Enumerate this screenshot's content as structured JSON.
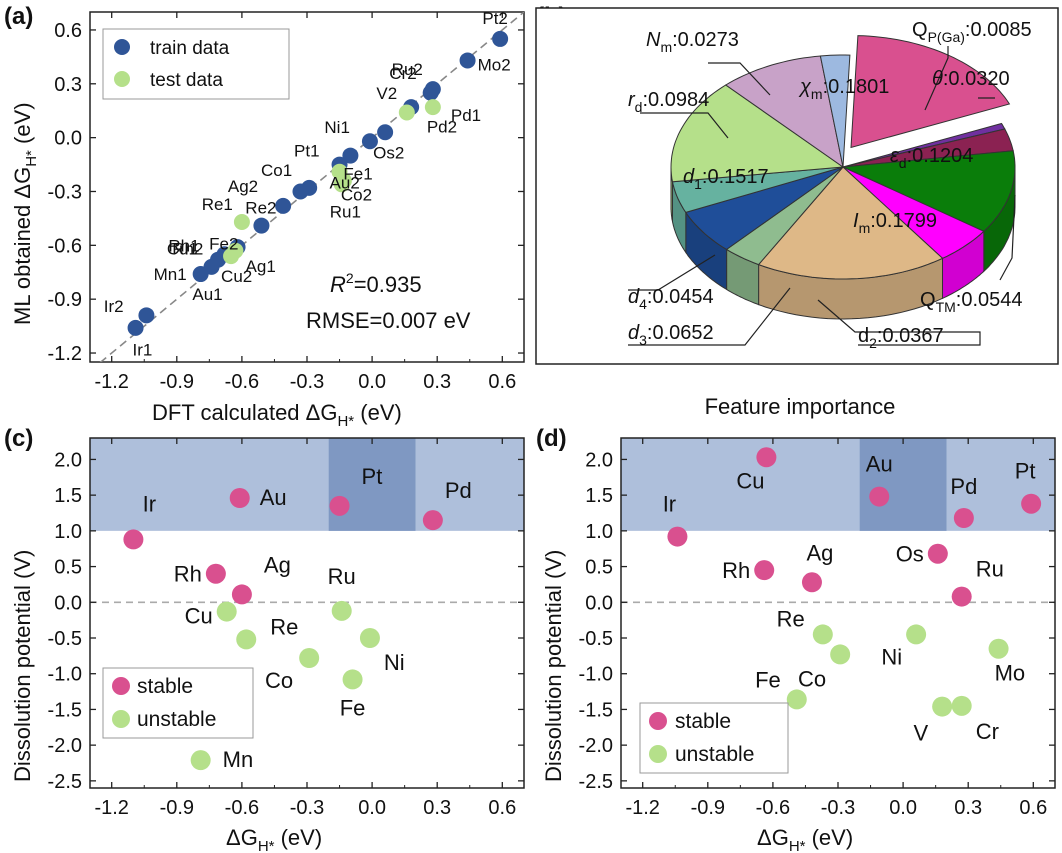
{
  "chart_data": [
    {
      "panel": "(a)",
      "type": "scatter",
      "title": "",
      "xlabel": "DFT calculated ΔG",
      "xlabel_sub": "H*",
      "xlabel_unit": " (eV)",
      "ylabel": "ML obtained ΔG",
      "ylabel_sub": "H*",
      "ylabel_unit": " (eV)",
      "xlim": [
        -1.3,
        0.7
      ],
      "ylim": [
        -1.25,
        0.7
      ],
      "xticks": [
        -1.2,
        -0.9,
        -0.6,
        -0.3,
        0.0,
        0.3,
        0.6
      ],
      "yticks": [
        -1.2,
        -0.9,
        -0.6,
        -0.3,
        0.0,
        0.3,
        0.6
      ],
      "tick_labels": [
        "-1.2",
        "-0.9",
        "-0.6",
        "-0.3",
        "0.0",
        "0.3",
        "0.6"
      ],
      "diagonal": true,
      "r2_label": "R",
      "r2_value": "=0.935",
      "rmse_text": "RMSE=0.007 eV",
      "legend": [
        {
          "name": "train data",
          "color": "#2f5597"
        },
        {
          "name": "test data",
          "color": "#b5e08a"
        }
      ],
      "series": [
        {
          "name": "train data",
          "color": "#2f5597",
          "points": [
            {
              "label": "Pt2",
              "x": 0.59,
              "y": 0.55
            },
            {
              "label": "Mo2",
              "x": 0.44,
              "y": 0.43
            },
            {
              "label": "Ru2",
              "x": 0.28,
              "y": 0.27
            },
            {
              "label": "Cr2",
              "x": 0.27,
              "y": 0.25
            },
            {
              "label": "V2",
              "x": 0.18,
              "y": 0.17
            },
            {
              "label": "Os2",
              "x": 0.06,
              "y": 0.03
            },
            {
              "label": "Ni1",
              "x": -0.01,
              "y": -0.02
            },
            {
              "label": "Fe1",
              "x": -0.1,
              "y": -0.1
            },
            {
              "label": "Pt1",
              "x": -0.15,
              "y": -0.15
            },
            {
              "label": "Co1",
              "x": -0.29,
              "y": -0.28
            },
            {
              "label": "Re2",
              "x": -0.33,
              "y": -0.3
            },
            {
              "label": "Ag2",
              "x": -0.41,
              "y": -0.38
            },
            {
              "label": "Fe2",
              "x": -0.51,
              "y": -0.49
            },
            {
              "label": "Ag1",
              "x": -0.62,
              "y": -0.61
            },
            {
              "label": "Rh1",
              "x": -0.68,
              "y": -0.65
            },
            {
              "label": "Cu1",
              "x": -0.71,
              "y": -0.68
            },
            {
              "label": "Au1",
              "x": -0.74,
              "y": -0.72
            },
            {
              "label": "Mn1",
              "x": -0.79,
              "y": -0.76
            },
            {
              "label": "Ir1",
              "x": -1.04,
              "y": -0.99
            },
            {
              "label": "Ir2",
              "x": -1.09,
              "y": -1.06
            }
          ]
        },
        {
          "name": "test data",
          "color": "#b5e08a",
          "points": [
            {
              "label": "Pd1",
              "x": 0.28,
              "y": 0.17
            },
            {
              "label": "Pd2",
              "x": 0.16,
              "y": 0.14
            },
            {
              "label": "Au2",
              "x": -0.15,
              "y": -0.19
            },
            {
              "label": "Ru1",
              "x": -0.14,
              "y": -0.26
            },
            {
              "label": "Co2",
              "x": -0.13,
              "y": -0.24
            },
            {
              "label": "Re1",
              "x": -0.6,
              "y": -0.47
            },
            {
              "label": "Rh2",
              "x": -0.63,
              "y": -0.63
            },
            {
              "label": "Cu2",
              "x": -0.65,
              "y": -0.66
            }
          ]
        }
      ]
    },
    {
      "panel": "(b)",
      "type": "pie",
      "title": "Feature importance",
      "slices": [
        {
          "label": "χm",
          "value": 0.1801,
          "color": "#d9508f",
          "exploded": true
        },
        {
          "label": "QP(Ga)",
          "value": 0.0085,
          "color": "#7030a0"
        },
        {
          "label": "θ",
          "value": 0.032,
          "color": "#8b2252"
        },
        {
          "label": "εd",
          "value": 0.1204,
          "color": "#0a7d0a"
        },
        {
          "label": "QTM",
          "value": 0.0544,
          "color": "#ff00ff"
        },
        {
          "label": "Im",
          "value": 0.1799,
          "color": "#deb887"
        },
        {
          "label": "d2",
          "value": 0.0367,
          "color": "#8fbc8f"
        },
        {
          "label": "d3",
          "value": 0.0652,
          "color": "#1f4e99"
        },
        {
          "label": "d4",
          "value": 0.0454,
          "color": "#66b2a0"
        },
        {
          "label": "d1",
          "value": 0.1517,
          "color": "#b5e08a"
        },
        {
          "label": "rd",
          "value": 0.0984,
          "color": "#c8a2c8"
        },
        {
          "label": "Nm",
          "value": 0.0273,
          "color": "#9db9e0"
        }
      ],
      "label_texts": {
        "chi": {
          "main": "χ",
          "sub": "m",
          "val": ":0.1801"
        },
        "qp": {
          "main": "Q",
          "sub": "P(Ga)",
          "val": ":0.0085"
        },
        "theta": {
          "main": "θ",
          "sub": "",
          "val": ":0.0320"
        },
        "eps": {
          "main": "ε",
          "sub": "d",
          "val": ":0.1204"
        },
        "qtm": {
          "main": "Q",
          "sub": "TM",
          "val": ":0.0544"
        },
        "im": {
          "main": "I",
          "sub": "m",
          "val": ":0.1799"
        },
        "d2": {
          "main": "d",
          "sub": "2",
          "val": ":0.0367"
        },
        "d3": {
          "main": "d",
          "sub": "3",
          "val": ":0.0652"
        },
        "d4": {
          "main": "d",
          "sub": "4",
          "val": ":0.0454"
        },
        "d1": {
          "main": "d",
          "sub": "1",
          "val": ":0.1517"
        },
        "rd": {
          "main": "r",
          "sub": "d",
          "val": ":0.0984"
        },
        "nm": {
          "main": "N",
          "sub": "m",
          "val": ":0.0273"
        }
      }
    },
    {
      "panel": "(c)",
      "type": "scatter",
      "xlabel": "ΔG",
      "xlabel_sub": "H*",
      "xlabel_unit": " (eV)",
      "ylabel": "Dissolution potential (V)",
      "xlim": [
        -1.3,
        0.7
      ],
      "ylim": [
        -2.6,
        2.3
      ],
      "xticks": [
        -1.2,
        -0.9,
        -0.6,
        -0.3,
        0.0,
        0.3,
        0.6
      ],
      "xtick_labels": [
        "-1.2",
        "-0.9",
        "-0.6",
        "-0.3",
        "0.0",
        "0.3",
        "0.6"
      ],
      "yticks": [
        2.0,
        1.5,
        1.0,
        0.5,
        0.0,
        -0.5,
        -1.0,
        -1.5,
        -2.0,
        -2.5
      ],
      "ytick_labels": [
        "2.0",
        "1.5",
        "1.0",
        "0.5",
        "0.0",
        "-0.5",
        "-1.0",
        "-1.5",
        "-2.0",
        "-2.5"
      ],
      "stable_region_y": 1.0,
      "highlight_x": [
        -0.2,
        0.2
      ],
      "legend": [
        {
          "name": "stable",
          "color": "#d9508f"
        },
        {
          "name": "unstable",
          "color": "#b5e08a"
        }
      ],
      "series": [
        {
          "name": "stable",
          "color": "#d9508f",
          "points": [
            {
              "label": "Ir",
              "x": -1.1,
              "y": 0.88
            },
            {
              "label": "Au",
              "x": -0.61,
              "y": 1.46
            },
            {
              "label": "Pt",
              "x": -0.15,
              "y": 1.35
            },
            {
              "label": "Pd",
              "x": 0.28,
              "y": 1.15
            },
            {
              "label": "Rh",
              "x": -0.72,
              "y": 0.4
            },
            {
              "label": "Ag",
              "x": -0.6,
              "y": 0.11
            }
          ]
        },
        {
          "name": "unstable",
          "color": "#b5e08a",
          "points": [
            {
              "label": "Cu",
              "x": -0.67,
              "y": -0.13
            },
            {
              "label": "Ru",
              "x": -0.14,
              "y": -0.12
            },
            {
              "label": "Re",
              "x": -0.58,
              "y": -0.52
            },
            {
              "label": "Ni",
              "x": -0.01,
              "y": -0.5
            },
            {
              "label": "Co",
              "x": -0.29,
              "y": -0.78
            },
            {
              "label": "Fe",
              "x": -0.09,
              "y": -1.08
            },
            {
              "label": "Mn",
              "x": -0.79,
              "y": -2.21
            }
          ]
        }
      ]
    },
    {
      "panel": "(d)",
      "type": "scatter",
      "xlabel": "ΔG",
      "xlabel_sub": "H*",
      "xlabel_unit": " (eV)",
      "ylabel": "Dissolution potential (V)",
      "xlim": [
        -1.3,
        0.7
      ],
      "ylim": [
        -2.6,
        2.3
      ],
      "xticks": [
        -1.2,
        -0.9,
        -0.6,
        -0.3,
        0.0,
        0.3,
        0.6
      ],
      "xtick_labels": [
        "-1.2",
        "-0.9",
        "-0.6",
        "-0.3",
        "0.0",
        "0.3",
        "0.6"
      ],
      "yticks": [
        2.0,
        1.5,
        1.0,
        0.5,
        0.0,
        -0.5,
        -1.0,
        -1.5,
        -2.0,
        -2.5
      ],
      "ytick_labels": [
        "2.0",
        "1.5",
        "1.0",
        "0.5",
        "0.0",
        "-0.5",
        "-1.0",
        "-1.5",
        "-2.0",
        "-2.5"
      ],
      "stable_region_y": 1.0,
      "highlight_x": [
        -0.2,
        0.2
      ],
      "legend": [
        {
          "name": "stable",
          "color": "#d9508f"
        },
        {
          "name": "unstable",
          "color": "#b5e08a"
        }
      ],
      "series": [
        {
          "name": "stable",
          "color": "#d9508f",
          "points": [
            {
              "label": "Cu",
              "x": -0.63,
              "y": 2.03
            },
            {
              "label": "Ir",
              "x": -1.04,
              "y": 0.92
            },
            {
              "label": "Au",
              "x": -0.11,
              "y": 1.48
            },
            {
              "label": "Pd",
              "x": 0.28,
              "y": 1.18
            },
            {
              "label": "Pt",
              "x": 0.59,
              "y": 1.38
            },
            {
              "label": "Rh",
              "x": -0.64,
              "y": 0.45
            },
            {
              "label": "Ag",
              "x": -0.42,
              "y": 0.28
            },
            {
              "label": "Os",
              "x": 0.16,
              "y": 0.68
            },
            {
              "label": "Ru",
              "x": 0.27,
              "y": 0.08
            }
          ]
        },
        {
          "name": "unstable",
          "color": "#b5e08a",
          "points": [
            {
              "label": "Re",
              "x": -0.37,
              "y": -0.45
            },
            {
              "label": "Co",
              "x": -0.29,
              "y": -0.73
            },
            {
              "label": "Ni",
              "x": 0.06,
              "y": -0.45
            },
            {
              "label": "Mo",
              "x": 0.44,
              "y": -0.65
            },
            {
              "label": "Fe",
              "x": -0.49,
              "y": -1.36
            },
            {
              "label": "V",
              "x": 0.18,
              "y": -1.46
            },
            {
              "label": "Cr",
              "x": 0.27,
              "y": -1.45
            }
          ]
        }
      ]
    }
  ]
}
